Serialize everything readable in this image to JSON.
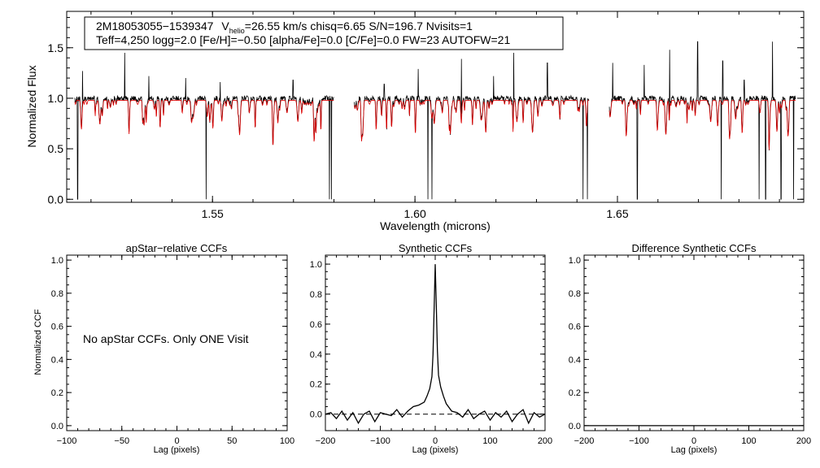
{
  "chart_data": [
    {
      "type": "line",
      "title": "",
      "xlabel": "Wavelength (microns)",
      "ylabel": "Normalized Flux",
      "xlim": [
        1.514,
        1.696
      ],
      "ylim": [
        -0.03,
        1.86
      ],
      "xticks": [
        1.55,
        1.6,
        1.65
      ],
      "xtick_labels": [
        "1.55",
        "1.60",
        "1.65"
      ],
      "yticks": [
        0.0,
        0.5,
        1.0,
        1.5
      ],
      "ytick_labels": [
        "0.0",
        "0.5",
        "1.0",
        "1.5"
      ],
      "annotation": {
        "line1_star": "2M18053055−1539347",
        "line1_v": "V",
        "line1_v_sub": "helio",
        "line1_rest": "=26.55 km/s  chisq=6.65  S/N=196.7  Nvisits=1",
        "line2": "Teff=4,250 logg=2.0 [Fe/H]=−0.50 [alpha/Fe]=0.0 [C/Fe]=0.0 FW=23 AUTOFW=21"
      },
      "series": [
        {
          "name": "Observed spectrum",
          "color": "#000000",
          "continuum": 1.0
        },
        {
          "name": "Synthetic model",
          "color": "#dd0000",
          "continuum": 0.98
        }
      ],
      "chips": [
        [
          1.516,
          1.58
        ],
        [
          1.585,
          1.643
        ],
        [
          1.648,
          1.694
        ]
      ],
      "bad_pixels": [
        1.5167,
        1.5484,
        1.5789,
        1.5794,
        1.5801,
        1.5806,
        1.6032,
        1.6042,
        1.6415,
        1.6426,
        1.6549,
        1.6566,
        1.6756,
        1.685,
        1.6866,
        1.6904,
        1.6935
      ],
      "emission_spikes": [
        [
          1.5179,
          1.27
        ],
        [
          1.5283,
          1.45
        ],
        [
          1.5343,
          1.22
        ],
        [
          1.5434,
          1.2
        ],
        [
          1.5519,
          1.16
        ],
        [
          1.5699,
          1.18
        ],
        [
          1.5924,
          1.14
        ],
        [
          1.6008,
          1.29
        ],
        [
          1.6115,
          1.39
        ],
        [
          1.6194,
          1.22
        ],
        [
          1.6244,
          1.45
        ],
        [
          1.6327,
          1.35
        ],
        [
          1.6488,
          1.35
        ],
        [
          1.6566,
          1.33
        ],
        [
          1.6629,
          1.48
        ],
        [
          1.6698,
          1.56
        ],
        [
          1.676,
          1.37
        ],
        [
          1.6813,
          1.18
        ],
        [
          1.6883,
          1.56
        ]
      ]
    },
    {
      "type": "line",
      "title": "apStar−relative CCFs",
      "xlabel": "Lag (pixels)",
      "ylabel": "Normalized CCF",
      "xlim": [
        -100,
        100
      ],
      "ylim": [
        -0.03,
        1.03
      ],
      "xticks": [
        -100,
        -50,
        0,
        50,
        100
      ],
      "xtick_labels": [
        "−100",
        "−50",
        "0",
        "50",
        "100"
      ],
      "yticks": [
        0.0,
        0.2,
        0.4,
        0.6,
        0.8,
        1.0
      ],
      "ytick_labels": [
        "0.0",
        "0.2",
        "0.4",
        "0.6",
        "0.8",
        "1.0"
      ],
      "message": "No apStar CCFs.  Only ONE Visit"
    },
    {
      "type": "line",
      "title": "Synthetic CCFs",
      "xlabel": "Lag (pixels)",
      "ylabel": "",
      "xlim": [
        -200,
        200
      ],
      "ylim": [
        -0.11,
        1.06
      ],
      "xticks": [
        -200,
        -100,
        0,
        100,
        200
      ],
      "xtick_labels": [
        "−200",
        "−100",
        "0",
        "100",
        "200"
      ],
      "yticks": [
        0.0,
        0.2,
        0.4,
        0.6,
        0.8,
        1.0
      ],
      "ytick_labels": [
        "0.0",
        "0.2",
        "0.4",
        "0.6",
        "0.8",
        "1.0"
      ],
      "reference_line": {
        "y": 0.0,
        "style": "dashed"
      },
      "series": [
        {
          "name": "CCF",
          "x": [
            -200,
            -190,
            -180,
            -170,
            -160,
            -150,
            -140,
            -130,
            -120,
            -110,
            -100,
            -90,
            -80,
            -70,
            -60,
            -50,
            -40,
            -30,
            -20,
            -15,
            -10,
            -6,
            -4,
            -2,
            0,
            2,
            4,
            6,
            10,
            15,
            20,
            30,
            40,
            50,
            60,
            70,
            80,
            90,
            100,
            110,
            120,
            130,
            140,
            150,
            160,
            170,
            180,
            190,
            200
          ],
          "y": [
            0.0,
            0.01,
            -0.03,
            0.02,
            -0.04,
            0.01,
            -0.06,
            0.0,
            0.02,
            -0.05,
            0.01,
            0.0,
            -0.01,
            0.03,
            -0.02,
            0.02,
            0.05,
            0.06,
            0.08,
            0.12,
            0.17,
            0.25,
            0.4,
            0.7,
            1.0,
            0.72,
            0.42,
            0.26,
            0.18,
            0.12,
            0.07,
            0.02,
            0.01,
            -0.02,
            0.03,
            -0.03,
            0.0,
            0.02,
            -0.04,
            0.01,
            -0.02,
            0.02,
            -0.05,
            0.0,
            0.03,
            -0.06,
            0.01,
            -0.02,
            0.0
          ]
        }
      ]
    },
    {
      "type": "line",
      "title": "Difference Synthetic CCFs",
      "xlabel": "Lag (pixels)",
      "ylabel": "",
      "xlim": [
        -200,
        200
      ],
      "ylim": [
        -0.03,
        1.03
      ],
      "xticks": [
        -200,
        -100,
        0,
        100,
        200
      ],
      "xtick_labels": [
        "−200",
        "−100",
        "0",
        "100",
        "200"
      ],
      "yticks": [
        0.0,
        0.2,
        0.4,
        0.6,
        0.8,
        1.0
      ],
      "ytick_labels": [
        "0.0",
        "0.2",
        "0.4",
        "0.6",
        "0.8",
        "1.0"
      ],
      "series": [
        {
          "name": "Difference",
          "x": [
            -200,
            200
          ],
          "y": [
            0.0,
            0.0
          ]
        }
      ]
    }
  ]
}
